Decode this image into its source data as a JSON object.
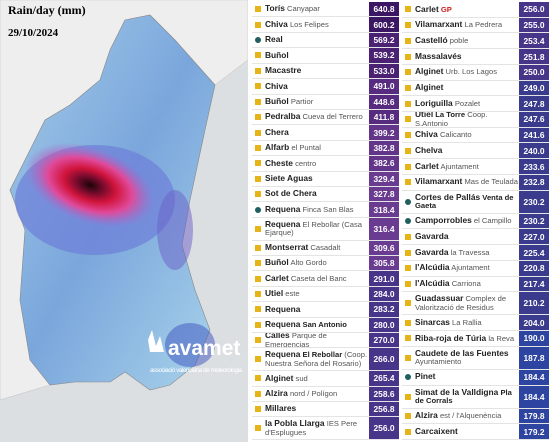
{
  "header": {
    "title": "Rain/day (mm)",
    "date": "29/10/2024"
  },
  "logo": {
    "name": "avamet",
    "tagline": "associació valenciana de meteorologia"
  },
  "columns": [
    [
      {
        "name": "Torís",
        "sub": "Canyapar",
        "value": "640.8",
        "color": "#3b1763"
      },
      {
        "name": "Chiva",
        "sub": "Los Felipes",
        "value": "600.2",
        "color": "#3b1763"
      },
      {
        "name": "Real",
        "marker": "circle",
        "value": "569.2",
        "color": "#4a2173"
      },
      {
        "name": "Buñol",
        "value": "539.2",
        "color": "#4a2173"
      },
      {
        "name": "Macastre",
        "value": "533.0",
        "color": "#4a2173"
      },
      {
        "name": "Chiva",
        "value": "491.0",
        "color": "#572b80"
      },
      {
        "name": "Buñol",
        "sub": "Partior",
        "value": "448.6",
        "color": "#572b80"
      },
      {
        "name": "Pedralba",
        "sub": "Cueva del Terrero",
        "value": "411.8",
        "color": "#572b80"
      },
      {
        "name": "Chera",
        "value": "399.2",
        "color": "#62358a"
      },
      {
        "name": "Alfarb",
        "sub": "el Puntal",
        "value": "382.8",
        "color": "#62358a"
      },
      {
        "name": "Cheste",
        "sub": "centro",
        "value": "382.6",
        "color": "#62358a"
      },
      {
        "name": "Siete Aguas",
        "value": "329.4",
        "color": "#6a3c91"
      },
      {
        "name": "Sot de Chera",
        "value": "327.8",
        "color": "#6a3c91"
      },
      {
        "name": "Requena",
        "marker": "circle",
        "sub": "Finca San Blas",
        "value": "318.4",
        "color": "#6a3c91"
      },
      {
        "name": "Requena",
        "sub": "El Rebollar (Casa Ejarque)",
        "double": true,
        "value": "316.4",
        "color": "#6a3c91"
      },
      {
        "name": "Montserrat",
        "sub": "Casadalt",
        "value": "309.6",
        "color": "#6a3c91"
      },
      {
        "name": "Buñol",
        "sub": "Alto Gordo",
        "value": "305.8",
        "color": "#6a3c91"
      },
      {
        "name": "Carlet",
        "sub": "Caseta del Banc",
        "value": "291.0",
        "color": "#473589"
      },
      {
        "name": "Utiel",
        "sub": "este",
        "value": "284.0",
        "color": "#473589"
      },
      {
        "name": "Requena",
        "value": "283.2",
        "color": "#473589"
      },
      {
        "name": "Requena",
        "sub_bold": "San Antonio",
        "value": "280.0",
        "color": "#473589"
      },
      {
        "name": "Calles",
        "sub": "Parque de Emergencias",
        "value": "270.0",
        "color": "#473589"
      },
      {
        "name": "Requena",
        "sub_bold": "El Rebollar",
        "sub": "(Coop. Nuestra Señora del Rosario)",
        "double": true,
        "value": "266.0",
        "color": "#473589"
      },
      {
        "name": "Alginet",
        "sub": "sud",
        "value": "265.4",
        "color": "#473589"
      },
      {
        "name": "Alzira",
        "sub": "nord / Polígon",
        "value": "258.6",
        "color": "#473589"
      },
      {
        "name": "Millares",
        "value": "256.8",
        "color": "#473589"
      },
      {
        "name": "la Pobla Llarga",
        "sub": "IES Pere d'Esplugues",
        "double": true,
        "value": "256.0",
        "color": "#473589"
      }
    ],
    [
      {
        "name": "Carlet",
        "sub_bold": "GP",
        "value": "256.0",
        "color": "#473589"
      },
      {
        "name": "Vilamarxant",
        "sub": "La Pedrera",
        "value": "255.0",
        "color": "#473589"
      },
      {
        "name": "Castelló",
        "sub": "poble",
        "value": "253.4",
        "color": "#473589"
      },
      {
        "name": "Massalavés",
        "value": "251.8",
        "color": "#473589"
      },
      {
        "name": "Alginet",
        "sub": "Urb. Los Lagos",
        "value": "250.0",
        "color": "#473589"
      },
      {
        "name": "Alginet",
        "value": "249.0",
        "color": "#3a3b8c"
      },
      {
        "name": "Loriguilla",
        "sub": "Pozalet",
        "value": "247.8",
        "color": "#3a3b8c"
      },
      {
        "name": "Utiel",
        "sub_bold": "La Torre",
        "sub": "Coop. S.Antonio",
        "value": "247.6",
        "color": "#3a3b8c"
      },
      {
        "name": "Chiva",
        "sub": "Calicanto",
        "value": "241.6",
        "color": "#3a3b8c"
      },
      {
        "name": "Chelva",
        "value": "240.0",
        "color": "#3a3b8c"
      },
      {
        "name": "Carlet",
        "sub": "Ajuntament",
        "value": "233.6",
        "color": "#3a3b8c"
      },
      {
        "name": "Vilamarxant",
        "sub": "Mas de Teulada",
        "value": "232.8",
        "color": "#3a3b8c"
      },
      {
        "name": "Cortes de Pallás",
        "marker": "circle",
        "sub_bold": "Venta de Gaeta",
        "double": true,
        "value": "230.2",
        "color": "#3a3b8c"
      },
      {
        "name": "Camporrobles",
        "marker": "circle",
        "sub": "el Campillo",
        "value": "230.2",
        "color": "#3a3b8c"
      },
      {
        "name": "Gavarda",
        "value": "227.0",
        "color": "#3a3b8c"
      },
      {
        "name": "Gavarda",
        "sub": "la Travessa",
        "value": "225.4",
        "color": "#3a3b8c"
      },
      {
        "name": "l'Alcúdia",
        "sub": "Ajuntament",
        "value": "220.8",
        "color": "#3a3b8c"
      },
      {
        "name": "l'Alcúdia",
        "sub": "Carriona",
        "value": "217.4",
        "color": "#3a3b8c"
      },
      {
        "name": "Guadassuar",
        "sub": "Complex de Valorització de Residus",
        "double": true,
        "value": "210.2",
        "color": "#3a3b8c"
      },
      {
        "name": "Sinarcas",
        "sub": "La Rallia",
        "value": "204.0",
        "color": "#3a3b8c"
      },
      {
        "name": "Riba-roja de Túria",
        "sub": "la Reva",
        "value": "190.0",
        "color": "#2d44a0"
      },
      {
        "name": "Caudete de las Fuentes",
        "sub": "Ayuntamiento",
        "double": true,
        "value": "187.8",
        "color": "#2d44a0"
      },
      {
        "name": "Pinet",
        "marker": "circle",
        "value": "184.4",
        "color": "#2d44a0"
      },
      {
        "name": "Simat de la Valldigna",
        "sub_bold": "Pla de Corrals",
        "double": true,
        "value": "184.4",
        "color": "#2d44a0"
      },
      {
        "name": "Alzira",
        "sub": "est / l'Alquenència",
        "value": "179.8",
        "color": "#2d44a0"
      },
      {
        "name": "Carcaixent",
        "value": "179.2",
        "color": "#2d44a0"
      }
    ]
  ]
}
